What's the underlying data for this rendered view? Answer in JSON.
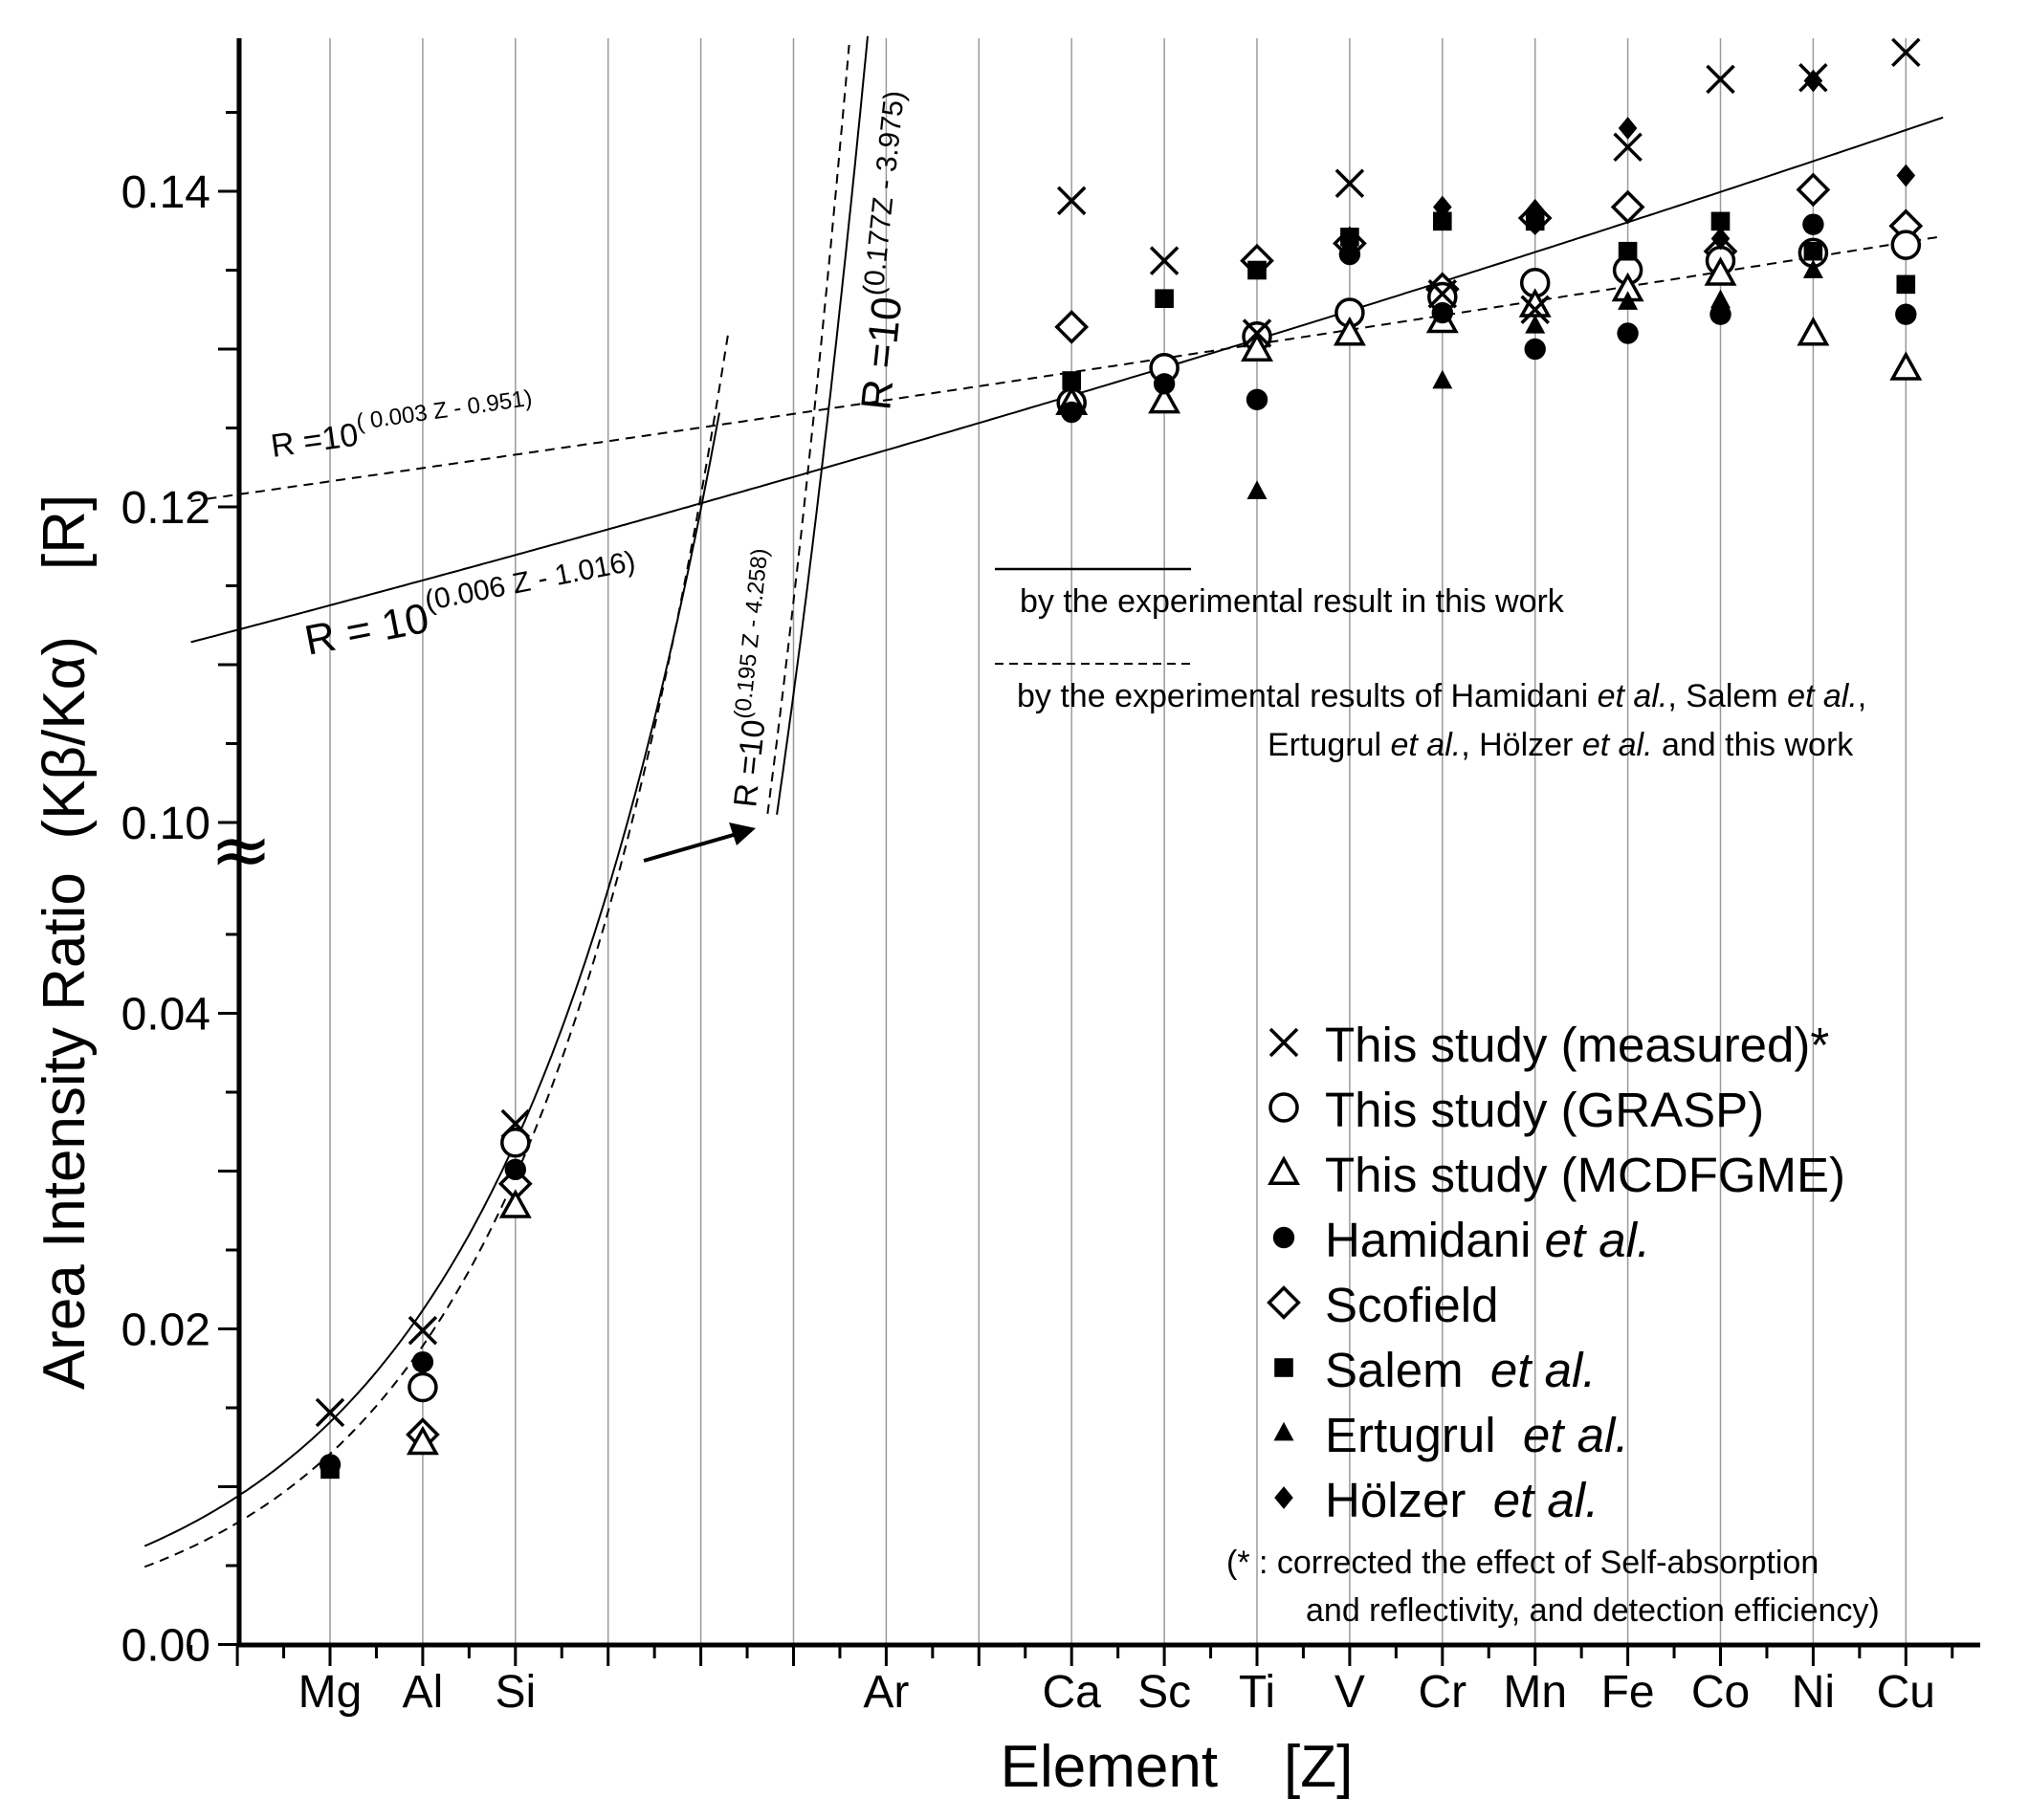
{
  "chart_data": {
    "type": "scatter",
    "title": "",
    "xlabel": "Element    [Z]",
    "ylabel": "Area Intensity Ratio  (Kβ/Kα)    [R]",
    "x_categories": [
      "Mg",
      "Al",
      "Si",
      "Ar",
      "Ca",
      "Sc",
      "Ti",
      "V",
      "Cr",
      "Mn",
      "Fe",
      "Co",
      "Ni",
      "Cu"
    ],
    "x_z": [
      12,
      13,
      14,
      18,
      20,
      21,
      22,
      23,
      24,
      25,
      26,
      27,
      28,
      29
    ],
    "xlim": [
      10,
      29.5
    ],
    "ylim": [
      0.0,
      0.15
    ],
    "axis_break": {
      "lower_segment": [
        0.0,
        0.05
      ],
      "upper_segment": [
        0.1,
        0.15
      ]
    },
    "y_tick_labels": [
      "0.00",
      "0.02",
      "0.04",
      "0.10",
      "0.12",
      "0.14"
    ],
    "y_tick_values": [
      0.0,
      0.02,
      0.04,
      0.1,
      0.12,
      0.14
    ],
    "grid": "vertical",
    "legend_position": "right",
    "series": [
      {
        "name": "This study (measured)*",
        "marker": "x",
        "points": [
          [
            12,
            0.0147
          ],
          [
            13,
            0.0199
          ],
          [
            14,
            0.033
          ],
          [
            20,
            0.1394
          ],
          [
            21,
            0.1356
          ],
          [
            22,
            0.131
          ],
          [
            23,
            0.1405
          ],
          [
            24,
            0.1335
          ],
          [
            25,
            0.1325
          ],
          [
            26,
            0.1428
          ],
          [
            27,
            0.1471
          ],
          [
            28,
            0.1472
          ],
          [
            29,
            0.1488
          ]
        ]
      },
      {
        "name": "This study (GRASP)",
        "marker": "circle-open",
        "points": [
          [
            13,
            0.0163
          ],
          [
            14,
            0.0318
          ],
          [
            20,
            0.1266
          ],
          [
            21,
            0.1288
          ],
          [
            22,
            0.1308
          ],
          [
            23,
            0.1323
          ],
          [
            24,
            0.1333
          ],
          [
            25,
            0.1342
          ],
          [
            26,
            0.135
          ],
          [
            27,
            0.1356
          ],
          [
            28,
            0.1361
          ],
          [
            29,
            0.1366
          ]
        ]
      },
      {
        "name": "This study (MCDFGME)",
        "marker": "triangle-open",
        "points": [
          [
            13,
            0.0128
          ],
          [
            14,
            0.0278
          ],
          [
            20,
            0.1266
          ],
          [
            21,
            0.1267
          ],
          [
            22,
            0.13
          ],
          [
            23,
            0.131
          ],
          [
            24,
            0.1318
          ],
          [
            25,
            0.1328
          ],
          [
            26,
            0.1338
          ],
          [
            27,
            0.1348
          ],
          [
            28,
            0.131
          ],
          [
            29,
            0.1288
          ]
        ]
      },
      {
        "name": "Hamidani et al.",
        "marker": "circle-filled",
        "points": [
          [
            12,
            0.0114
          ],
          [
            13,
            0.0179
          ],
          [
            14,
            0.0301
          ],
          [
            20,
            0.126
          ],
          [
            21,
            0.1278
          ],
          [
            22,
            0.1268
          ],
          [
            23,
            0.136
          ],
          [
            24,
            0.1323
          ],
          [
            25,
            0.13
          ],
          [
            26,
            0.131
          ],
          [
            27,
            0.1322
          ],
          [
            28,
            0.1379
          ],
          [
            29,
            0.1322
          ]
        ]
      },
      {
        "name": "Scofield",
        "marker": "diamond-open",
        "points": [
          [
            13,
            0.0133
          ],
          [
            14,
            0.0292
          ],
          [
            20,
            0.1314
          ],
          [
            22,
            0.1356
          ],
          [
            23,
            0.1367
          ],
          [
            24,
            0.1338
          ],
          [
            25,
            0.1383
          ],
          [
            26,
            0.139
          ],
          [
            27,
            0.1362
          ],
          [
            28,
            0.1401
          ],
          [
            29,
            0.1378
          ]
        ]
      },
      {
        "name": "Salem et al.",
        "marker": "square-filled",
        "points": [
          [
            12,
            0.0111
          ],
          [
            20,
            0.128
          ],
          [
            21,
            0.1332
          ],
          [
            22,
            0.135
          ],
          [
            23,
            0.1371
          ],
          [
            24,
            0.1381
          ],
          [
            25,
            0.1381
          ],
          [
            26,
            0.1362
          ],
          [
            27,
            0.1381
          ],
          [
            28,
            0.1362
          ],
          [
            29,
            0.1341
          ]
        ]
      },
      {
        "name": "Ertugrul et al.",
        "marker": "triangle-filled",
        "points": [
          [
            22,
            0.121
          ],
          [
            24,
            0.128
          ],
          [
            25,
            0.1315
          ],
          [
            26,
            0.133
          ],
          [
            27,
            0.1331
          ],
          [
            28,
            0.135
          ]
        ]
      },
      {
        "name": "Hölzer et al.",
        "marker": "diamond-filled",
        "points": [
          [
            23,
            0.1368
          ],
          [
            24,
            0.139
          ],
          [
            25,
            0.1388
          ],
          [
            26,
            0.144
          ],
          [
            27,
            0.137
          ],
          [
            28,
            0.147
          ],
          [
            29,
            0.141
          ]
        ]
      }
    ],
    "fit_lines": [
      {
        "label": "R = 10^(0.006 Z - 1.016)",
        "style": "solid",
        "segment": "upper",
        "note": "by the experimental result in this work"
      },
      {
        "label": "R =10^(0.003 Z - 0.951)",
        "style": "dashed",
        "segment": "upper",
        "note": "by the experimental results of Hamidani et al., Salem et al., Ertugrul et al., Hölzer et al. and this work"
      },
      {
        "label": "R =10^(0.177Z - 3.975)",
        "style": "solid",
        "segment": "lower"
      },
      {
        "label": "R =10^(0.195 Z - 4.258)",
        "style": "dashed",
        "segment": "lower"
      }
    ],
    "annotations": {
      "formula_upper_solid": {
        "prefix": "R = 10",
        "exp": "(0.006 Z - 1.016)"
      },
      "formula_upper_dashed": {
        "prefix": "R =10",
        "exp": "( 0.003 Z - 0.951)"
      },
      "formula_lower_solid": {
        "prefix": "R =10",
        "exp": "(0.177Z - 3.975)"
      },
      "formula_lower_dashed": {
        "prefix": "R =10",
        "exp": "(0.195 Z - 4.258)"
      },
      "line_key_solid": "by the experimental result in this work",
      "line_key_dashed_1a": "by the experimental results of Hamidani ",
      "line_key_dashed_1b": "et al.",
      "line_key_dashed_1c": ", Salem ",
      "line_key_dashed_1d": "et al.",
      "line_key_dashed_1e": ",",
      "line_key_dashed_2a": "Ertugrul ",
      "line_key_dashed_2b": "et al.",
      "line_key_dashed_2c": ", Hölzer ",
      "line_key_dashed_2d": "et al.",
      "line_key_dashed_2e": " and this work",
      "footnote_1": "(* : corrected the effect of Self-absorption",
      "footnote_2": "and reflectivity, and detection efficiency)",
      "axis_break_symbol": "≈"
    },
    "legend": [
      {
        "marker": "x",
        "text": "This study (measured)*",
        "italic": ""
      },
      {
        "marker": "circle-open",
        "text": "This study (GRASP)",
        "italic": ""
      },
      {
        "marker": "triangle-open",
        "text": "This study (MCDFGME)",
        "italic": ""
      },
      {
        "marker": "circle-filled",
        "text": "Hamidani ",
        "italic": "et al."
      },
      {
        "marker": "diamond-open",
        "text": "Scofield",
        "italic": ""
      },
      {
        "marker": "square-filled",
        "text": "Salem  ",
        "italic": "et al."
      },
      {
        "marker": "triangle-filled",
        "text": "Ertugrul  ",
        "italic": "et al."
      },
      {
        "marker": "diamond-filled",
        "text": "Hölzer  ",
        "italic": "et al."
      }
    ]
  }
}
